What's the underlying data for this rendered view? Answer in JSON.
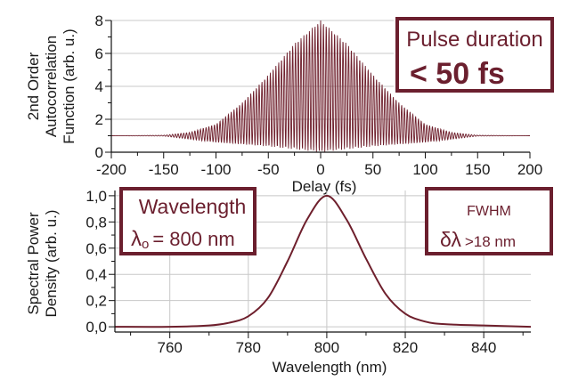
{
  "colors": {
    "trace": "#6e1f2c",
    "box_border": "#6b1f2e",
    "box_text": "#6b1f2e",
    "grid": "#c8c8c8",
    "axis": "#111111"
  },
  "chart_data": [
    {
      "type": "line",
      "title": "",
      "xlabel": "Delay (fs)",
      "ylabel_lines": [
        "2nd Order",
        "Autocorrelation",
        "Function (arb. u.)"
      ],
      "xlim": [
        -200,
        200
      ],
      "ylim": [
        0,
        8
      ],
      "x_ticks": [
        -200,
        -150,
        -100,
        -50,
        0,
        50,
        100,
        150,
        200
      ],
      "y_ticks": [
        0,
        2,
        4,
        6,
        8
      ],
      "x_tick_labels": [
        "-200",
        "-150",
        "-100",
        "-50",
        "0",
        "50",
        "100",
        "150",
        "200"
      ],
      "y_tick_labels": [
        "0",
        "2",
        "4",
        "6",
        "8"
      ],
      "grid": true,
      "series": [
        {
          "values_note_omitted": "",
          "background_level": 1.0,
          "peak": 8.0,
          "carrier_period_fs": 2.67,
          "envelope_fwhm_fs": 50,
          "upper_envelope": [
            [
              -200,
              1.0
            ],
            [
              -150,
              1.03
            ],
            [
              -125,
              1.2
            ],
            [
              -100,
              1.7
            ],
            [
              -75,
              3.0
            ],
            [
              -50,
              4.7
            ],
            [
              -25,
              6.6
            ],
            [
              0,
              8.0
            ],
            [
              25,
              6.6
            ],
            [
              50,
              4.7
            ],
            [
              75,
              3.0
            ],
            [
              100,
              1.7
            ],
            [
              125,
              1.2
            ],
            [
              150,
              1.03
            ],
            [
              200,
              1.0
            ]
          ],
          "lower_envelope": [
            [
              -200,
              1.0
            ],
            [
              -150,
              0.98
            ],
            [
              -100,
              0.6
            ],
            [
              -50,
              0.35
            ],
            [
              0,
              0.0
            ],
            [
              50,
              0.35
            ],
            [
              100,
              0.6
            ],
            [
              150,
              0.98
            ],
            [
              200,
              1.0
            ]
          ]
        }
      ],
      "annotation": {
        "line1": "Pulse duration",
        "line2": "< 50 fs"
      }
    },
    {
      "type": "line",
      "title": "",
      "xlabel": "Wavelength (nm)",
      "ylabel_lines": [
        "Spectral Power",
        "Density (arb. u.)"
      ],
      "xlim": [
        746,
        852
      ],
      "ylim": [
        -0.04,
        1.04
      ],
      "x_ticks": [
        760,
        780,
        800,
        820,
        840
      ],
      "y_ticks": [
        0.0,
        0.2,
        0.4,
        0.6,
        0.8,
        1.0
      ],
      "x_tick_labels": [
        "760",
        "780",
        "800",
        "820",
        "840"
      ],
      "y_tick_labels": [
        "0,0",
        "0,2",
        "0,4",
        "0,6",
        "0,8",
        "1,0"
      ],
      "grid": true,
      "series": [
        {
          "x": [
            746,
            760,
            770,
            775,
            780,
            785,
            790,
            795,
            800,
            805,
            810,
            815,
            820,
            825,
            830,
            840,
            852
          ],
          "values": [
            0.0,
            0.0,
            0.01,
            0.03,
            0.08,
            0.22,
            0.5,
            0.82,
            1.0,
            0.82,
            0.52,
            0.25,
            0.1,
            0.04,
            0.02,
            0.01,
            0.0
          ]
        }
      ],
      "annotations": [
        {
          "line1": "Wavelength",
          "symbol": "λ",
          "subscript": "o",
          "equals": "= 800 nm"
        },
        {
          "line1": "FWHM",
          "symbol": "δλ",
          "value": ">18 nm"
        }
      ]
    }
  ]
}
